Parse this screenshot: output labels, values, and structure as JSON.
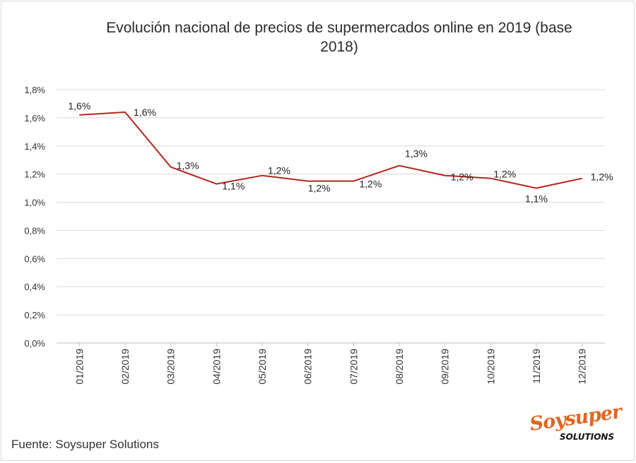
{
  "title_line1": "Evolución nacional de precios de supermercados online en 2019 (base",
  "title_line2": "2018)",
  "source": "Fuente: Soysuper Solutions",
  "logo": {
    "brand": "Soysuper",
    "sub": "SOLUTIONS"
  },
  "colors": {
    "line": "#b5261e",
    "grid": "#d9d9d9",
    "axis": "#bfbfbf"
  },
  "chart_data": {
    "type": "line",
    "categories": [
      "01/2019",
      "02/2019",
      "03/2019",
      "04/2019",
      "05/2019",
      "06/2019",
      "07/2019",
      "08/2019",
      "09/2019",
      "10/2019",
      "11/2019",
      "12/2019"
    ],
    "series": [
      {
        "values": [
          1.62,
          1.64,
          1.25,
          1.13,
          1.19,
          1.15,
          1.15,
          1.26,
          1.19,
          1.17,
          1.1,
          1.17
        ],
        "labels": [
          "1,6%",
          "1,6%",
          "1,3%",
          "1,1%",
          "1,2%",
          "1,2%",
          "1,2%",
          "1,3%",
          "1,2%",
          "1,2%",
          "1,1%",
          "1,2%"
        ]
      }
    ],
    "ylim": [
      0,
      1.8
    ],
    "yticks": [
      "0,0%",
      "0,2%",
      "0,4%",
      "0,6%",
      "0,8%",
      "1,0%",
      "1,2%",
      "1,4%",
      "1,6%",
      "1,8%"
    ],
    "grid": true,
    "legend": "none"
  }
}
